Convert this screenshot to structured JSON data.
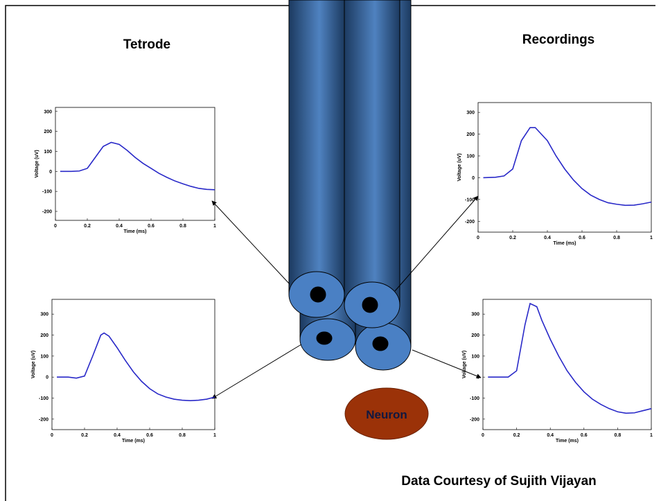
{
  "labels": {
    "left_title": "Tetrode",
    "right_title": "Recordings",
    "neuron": "Neuron",
    "credit": "Data Courtesy of Sujith Vijayan"
  },
  "chart_data": [
    {
      "type": "line",
      "xlabel": "Time (ms)",
      "ylabel": "Voltage (uV)",
      "color": "#2828c8",
      "x": [
        0.03,
        0.1,
        0.15,
        0.2,
        0.25,
        0.3,
        0.35,
        0.4,
        0.45,
        0.5,
        0.55,
        0.6,
        0.65,
        0.7,
        0.75,
        0.8,
        0.85,
        0.9,
        0.95,
        1
      ],
      "values": [
        0,
        0,
        2,
        15,
        70,
        125,
        145,
        135,
        105,
        70,
        40,
        15,
        -10,
        -30,
        -48,
        -62,
        -75,
        -85,
        -90,
        -92
      ],
      "xlim": [
        0,
        1
      ],
      "xticks": [
        0,
        0.2,
        0.4,
        0.6,
        0.8,
        1
      ],
      "ylim": [
        -245,
        320
      ],
      "yticks": [
        -200,
        -100,
        0,
        100,
        200,
        300
      ]
    },
    {
      "type": "line",
      "xlabel": "Time (ms)",
      "ylabel": "Voltage (uV)",
      "color": "#2828c8",
      "x": [
        0.03,
        0.1,
        0.15,
        0.2,
        0.25,
        0.3,
        0.33,
        0.4,
        0.45,
        0.5,
        0.55,
        0.6,
        0.65,
        0.7,
        0.75,
        0.8,
        0.85,
        0.9,
        0.95,
        1
      ],
      "values": [
        0,
        2,
        8,
        40,
        170,
        230,
        230,
        170,
        100,
        40,
        -10,
        -50,
        -80,
        -100,
        -115,
        -122,
        -127,
        -126,
        -120,
        -112
      ],
      "xlim": [
        0,
        1
      ],
      "xticks": [
        0,
        0.2,
        0.4,
        0.6,
        0.8,
        1
      ],
      "ylim": [
        -250,
        345
      ],
      "yticks": [
        -200,
        -100,
        0,
        100,
        200,
        300
      ]
    },
    {
      "type": "line",
      "xlabel": "Time (ms)",
      "ylabel": "Voltage (uV)",
      "color": "#2828c8",
      "x": [
        0.03,
        0.1,
        0.15,
        0.2,
        0.25,
        0.3,
        0.32,
        0.35,
        0.4,
        0.45,
        0.5,
        0.55,
        0.6,
        0.65,
        0.7,
        0.75,
        0.8,
        0.85,
        0.9,
        0.95,
        1
      ],
      "values": [
        0,
        0,
        -5,
        5,
        100,
        200,
        210,
        195,
        140,
        80,
        25,
        -20,
        -55,
        -80,
        -95,
        -105,
        -110,
        -112,
        -110,
        -105,
        -95
      ],
      "xlim": [
        0,
        1
      ],
      "xticks": [
        0,
        0.2,
        0.4,
        0.6,
        0.8,
        1
      ],
      "ylim": [
        -250,
        370
      ],
      "yticks": [
        -200,
        -100,
        0,
        100,
        200,
        300
      ]
    },
    {
      "type": "line",
      "xlabel": "Time (ms)",
      "ylabel": "Voltage (uV)",
      "color": "#2828c8",
      "x": [
        0.03,
        0.1,
        0.15,
        0.2,
        0.25,
        0.28,
        0.32,
        0.35,
        0.4,
        0.45,
        0.5,
        0.55,
        0.6,
        0.65,
        0.7,
        0.75,
        0.8,
        0.85,
        0.9,
        0.95,
        1
      ],
      "values": [
        0,
        0,
        0,
        30,
        250,
        350,
        335,
        270,
        180,
        100,
        30,
        -25,
        -70,
        -105,
        -130,
        -150,
        -165,
        -172,
        -170,
        -160,
        -150
      ],
      "xlim": [
        0,
        1
      ],
      "xticks": [
        0,
        0.2,
        0.4,
        0.6,
        0.8,
        1
      ],
      "ylim": [
        -250,
        370
      ],
      "yticks": [
        -200,
        -100,
        0,
        100,
        200,
        300
      ]
    }
  ]
}
